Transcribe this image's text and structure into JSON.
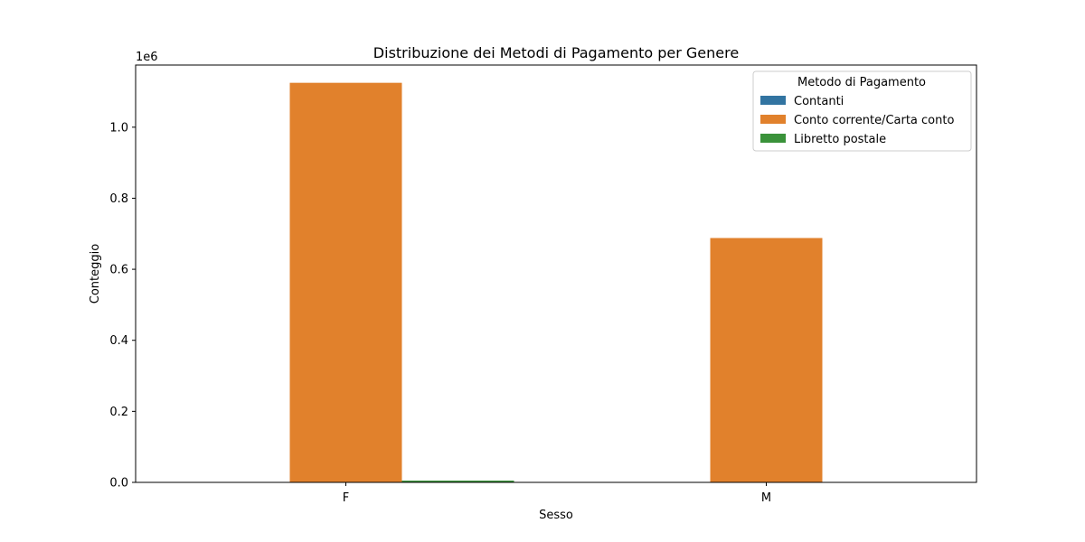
{
  "chart_data": {
    "type": "bar",
    "title": "Distribuzione dei Metodi di Pagamento per Genere",
    "xlabel": "Sesso",
    "ylabel": "Conteggio",
    "y_offset_label": "1e6",
    "categories": [
      "F",
      "M"
    ],
    "ylim": [
      0,
      1.175
    ],
    "y_ticks": [
      0.0,
      0.2,
      0.4,
      0.6,
      0.8,
      1.0
    ],
    "y_tick_labels": [
      "0.0",
      "0.2",
      "0.4",
      "0.6",
      "0.8",
      "1.0"
    ],
    "grid": false,
    "legend": {
      "title": "Metodo di Pagamento",
      "placement": "top-right"
    },
    "series": [
      {
        "name": "Contanti",
        "color": "#3274a1",
        "values": [
          0,
          0
        ]
      },
      {
        "name": "Conto corrente/Carta conto",
        "color": "#e1812c",
        "values": [
          1.125,
          0.688
        ]
      },
      {
        "name": "Libretto postale",
        "color": "#3a923a",
        "values": [
          0.005,
          0
        ]
      }
    ]
  }
}
